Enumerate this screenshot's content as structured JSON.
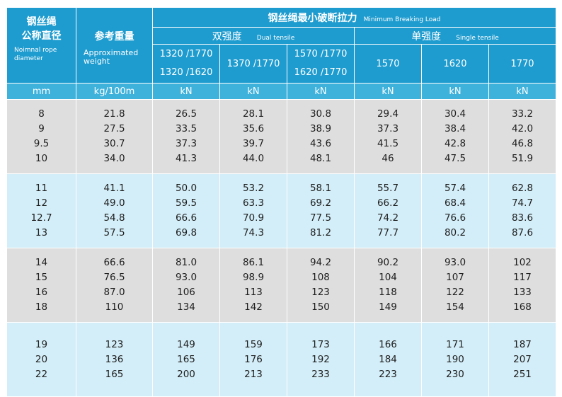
{
  "header": {
    "col1_cn_line1": "钢丝绳",
    "col1_cn_line2": "公称直径",
    "col1_en": "Noimnal rope diameter",
    "col2_cn": "参考重量",
    "col2_en": "Approximated weight",
    "mbl_cn": "钢丝绳最小破断拉力",
    "mbl_en": "Minimum Breaking Load",
    "dual_cn": "双强度",
    "dual_en": "Dual tensile",
    "single_cn": "单强度",
    "single_en": "Single tensile",
    "grade1_line1": "1320 /1770",
    "grade1_line2": "1320 /1620",
    "grade2": "1370 /1770",
    "grade3_line1": "1570 /1770",
    "grade3_line2": "1620 /1770",
    "grade4": "1570",
    "grade5": "1620",
    "grade6": "1770"
  },
  "units": [
    "mm",
    "kg/100m",
    "kN",
    "kN",
    "kN",
    "kN",
    "kN",
    "kN"
  ],
  "groups": [
    {
      "diameter": [
        "8",
        "9",
        "9.5",
        "10"
      ],
      "weight": [
        "21.8",
        "27.5",
        "30.7",
        "34.0"
      ],
      "g1": [
        "26.5",
        "33.5",
        "37.3",
        "41.3"
      ],
      "g2": [
        "28.1",
        "35.6",
        "39.7",
        "44.0"
      ],
      "g3": [
        "30.8",
        "38.9",
        "43.6",
        "48.1"
      ],
      "g4": [
        "29.4",
        "37.3",
        "41.5",
        "46"
      ],
      "g5": [
        "30.4",
        "38.4",
        "42.8",
        "47.5"
      ],
      "g6": [
        "33.2",
        "42.0",
        "46.8",
        "51.9"
      ]
    },
    {
      "diameter": [
        "11",
        "12",
        "12.7",
        "13"
      ],
      "weight": [
        "41.1",
        "49.0",
        "54.8",
        "57.5"
      ],
      "g1": [
        "50.0",
        "59.5",
        "66.6",
        "69.8"
      ],
      "g2": [
        "53.2",
        "63.3",
        "70.9",
        "74.3"
      ],
      "g3": [
        "58.1",
        "69.2",
        "77.5",
        "81.2"
      ],
      "g4": [
        "55.7",
        "66.2",
        "74.2",
        "77.7"
      ],
      "g5": [
        "57.4",
        "68.4",
        "76.6",
        "80.2"
      ],
      "g6": [
        "62.8",
        "74.7",
        "83.6",
        "87.6"
      ]
    },
    {
      "diameter": [
        "14",
        "15",
        "16",
        "18"
      ],
      "weight": [
        "66.6",
        "76.5",
        "87.0",
        "110"
      ],
      "g1": [
        "81.0",
        "93.0",
        "106",
        "134"
      ],
      "g2": [
        "86.1",
        "98.9",
        "113",
        "142"
      ],
      "g3": [
        "94.2",
        "108",
        "123",
        "150"
      ],
      "g4": [
        "90.2",
        "104",
        "118",
        "149"
      ],
      "g5": [
        "93.0",
        "107",
        "122",
        "154"
      ],
      "g6": [
        "102",
        "117",
        "133",
        "168"
      ]
    },
    {
      "diameter": [
        "19",
        "20",
        "22"
      ],
      "weight": [
        "123",
        "136",
        "165"
      ],
      "g1": [
        "149",
        "165",
        "200"
      ],
      "g2": [
        "159",
        "176",
        "213"
      ],
      "g3": [
        "173",
        "192",
        "233"
      ],
      "g4": [
        "166",
        "184",
        "223"
      ],
      "g5": [
        "171",
        "190",
        "230"
      ],
      "g6": [
        "187",
        "207",
        "251"
      ]
    }
  ]
}
